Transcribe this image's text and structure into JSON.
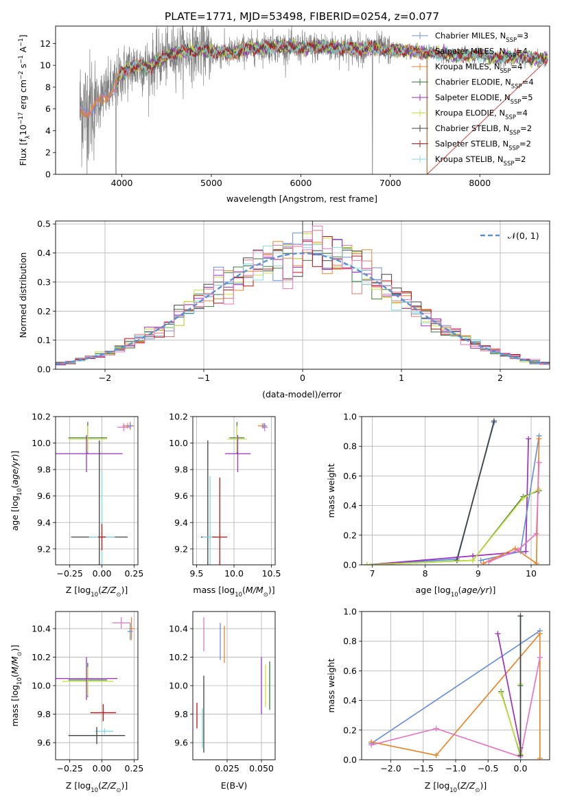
{
  "figure": {
    "title": "PLATE=1771, MJD=53498, FIBERID=0254, z=0.077"
  },
  "chart_data": [
    {
      "id": "spectrum",
      "type": "line",
      "xlabel": "wavelength [Angstrom, rest frame]",
      "ylabel": "Flux [f$_\\lambda$10$^{-17}$ erg cm$^{-2}$ s$^{-1}$ A$^{-1}$]",
      "ylabel_parts": [
        "Flux [f",
        "λ",
        "10",
        "−17",
        " erg cm",
        "−2",
        " s",
        "−1",
        " A",
        "−1",
        "]"
      ],
      "xlim": [
        3260,
        8780
      ],
      "ylim": [
        0,
        13.6
      ],
      "xticks": [
        4000,
        5000,
        6000,
        7000,
        8000
      ],
      "yticks": [
        0,
        2,
        4,
        6,
        8,
        10,
        12
      ],
      "series": [
        {
          "name": "Chabrier MILES, N$_{SSP}$=3",
          "label": "Chabrier MILES, N",
          "n": "3",
          "color": "#6a8fd8"
        },
        {
          "name": "Salpeter MILES, N$_{SSP}$=4",
          "label": "Salpeter MILES, N",
          "n": "4",
          "color": "#e07878"
        },
        {
          "name": "Kroupa MILES, N$_{SSP}$=4",
          "label": "Kroupa MILES, N",
          "n": "4",
          "color": "#e8852a"
        },
        {
          "name": "Chabrier ELODIE, N$_{SSP}$=4",
          "label": "Chabrier ELODIE, N",
          "n": "4",
          "color": "#3d7a3d"
        },
        {
          "name": "Salpeter ELODIE, N$_{SSP}$=5",
          "label": "Salpeter ELODIE, N",
          "n": "5",
          "color": "#9a2fc0"
        },
        {
          "name": "Kroupa ELODIE, N$_{SSP}$=4",
          "label": "Kroupa ELODIE, N",
          "n": "4",
          "color": "#c8e040"
        },
        {
          "name": "Chabrier STELIB, N$_{SSP}$=2",
          "label": "Chabrier STELIB, N",
          "n": "2",
          "color": "#404040"
        },
        {
          "name": "Salpeter STELIB, N$_{SSP}$=2",
          "label": "Salpeter STELIB, N",
          "n": "2",
          "color": "#c01010"
        },
        {
          "name": "Kroupa STELIB, N$_{SSP}$=2",
          "label": "Kroupa STELIB, N",
          "n": "2",
          "color": "#80d8e0"
        }
      ],
      "subscript": "SSP",
      "data_color": "#808080",
      "continuum": [
        [
          3530,
          6
        ],
        [
          3600,
          6
        ],
        [
          3700,
          6.5
        ],
        [
          3800,
          7.3
        ],
        [
          3900,
          7.9
        ],
        [
          4000,
          9.2
        ],
        [
          4100,
          9.8
        ],
        [
          4200,
          10
        ],
        [
          4300,
          9.8
        ],
        [
          4400,
          10.4
        ],
        [
          4500,
          10.8
        ],
        [
          4600,
          11.2
        ],
        [
          4700,
          11.3
        ],
        [
          4800,
          11.3
        ],
        [
          4900,
          11.5
        ],
        [
          5000,
          11.2
        ],
        [
          5200,
          11.1
        ],
        [
          5400,
          11.5
        ],
        [
          5600,
          11.7
        ],
        [
          5800,
          11.7
        ],
        [
          6000,
          11.6
        ],
        [
          6200,
          11.7
        ],
        [
          6400,
          11.6
        ],
        [
          6600,
          11.5
        ],
        [
          6800,
          11.6
        ],
        [
          7000,
          11.4
        ],
        [
          7200,
          11.3
        ],
        [
          7400,
          11.2
        ],
        [
          7600,
          11
        ],
        [
          7800,
          10.9
        ],
        [
          8000,
          11
        ],
        [
          8200,
          10.6
        ],
        [
          8400,
          10.8
        ],
        [
          8600,
          10.6
        ],
        [
          8760,
          10.6
        ]
      ],
      "dips": [
        [
          3934,
          0
        ],
        [
          6800,
          0
        ],
        [
          7410,
          0
        ]
      ]
    },
    {
      "id": "residuals",
      "type": "histogram",
      "xlabel": "(data-model)/error",
      "ylabel": "Normed distribution",
      "xlim": [
        -2.5,
        2.5
      ],
      "ylim": [
        0,
        0.51
      ],
      "xticks": [
        -2,
        -1,
        0,
        1,
        2
      ],
      "xtick_labels": [
        "−2",
        "−1",
        "0",
        "1",
        "2"
      ],
      "yticks": [
        0,
        0.1,
        0.2,
        0.3,
        0.4,
        0.5
      ],
      "ytick_labels": [
        "0.0",
        "0.1",
        "0.2",
        "0.3",
        "0.4",
        "0.5"
      ],
      "legend_label": "N(0,1)",
      "legend_position": "top-right",
      "bin_width": 0.1,
      "bin_start": -2.5,
      "normal_curve": {
        "mean": 0,
        "sigma": 1,
        "color": "#5b8fd0"
      }
    },
    {
      "id": "age-Z",
      "type": "errorbar",
      "xlabel": "Z [log",
      "xlabel_parts": [
        "Z [log",
        "10",
        "(Z/Z",
        "⊙",
        ")]"
      ],
      "ylabel_parts": [
        "age  [log",
        "10",
        "(age/yr)]"
      ],
      "xlim": [
        -0.36,
        0.28
      ],
      "ylim": [
        9.08,
        10.2
      ],
      "xticks": [
        -0.25,
        0,
        0.25
      ],
      "xtick_labels": [
        "−0.25",
        "0.00",
        "0.25"
      ],
      "yticks": [
        9.2,
        9.4,
        9.6,
        9.8,
        10.0,
        10.2
      ],
      "ytick_labels": [
        "9.2",
        "9.4",
        "9.6",
        "9.8",
        "10.0",
        "10.2"
      ],
      "points": [
        {
          "c": "#e07878",
          "x": 0.2,
          "y": 10.13,
          "xe": 0.04,
          "ye": 0.02
        },
        {
          "c": "#e8852a",
          "x": 0.22,
          "y": 10.13,
          "xe": 0.03,
          "ye": 0.03
        },
        {
          "c": "#6a8fd8",
          "x": 0.22,
          "y": 10.13,
          "xe": 0.02,
          "ye": 0.02
        },
        {
          "c": "#e377c2",
          "x": 0.17,
          "y": 10.12,
          "xe": 0.05,
          "ye": 0.03
        },
        {
          "c": "#3d7a3d",
          "x": -0.11,
          "y": 10.04,
          "xe": 0.15,
          "ye": 0.12
        },
        {
          "c": "#c8e040",
          "x": -0.11,
          "y": 10.03,
          "xe": 0.15,
          "ye": 0.1
        },
        {
          "c": "#9a2fc0",
          "x": -0.12,
          "y": 9.92,
          "xe": 0.28,
          "ye": 0.14
        },
        {
          "c": "#404040",
          "x": -0.02,
          "y": 9.29,
          "xe": 0.22,
          "ye": 0.73
        },
        {
          "c": "#80d8e0",
          "x": 0.0,
          "y": 9.29,
          "xe": 0.1,
          "ye": 0.5
        },
        {
          "c": "#c01010",
          "x": 0.0,
          "y": 9.29,
          "xe": 0.03,
          "ye": 0.1
        }
      ]
    },
    {
      "id": "age-mass",
      "type": "errorbar",
      "xlabel_parts": [
        "mass [log",
        "10",
        "(M/M",
        "⊙",
        ")]"
      ],
      "xlim": [
        9.45,
        10.55
      ],
      "ylim": [
        9.08,
        10.2
      ],
      "xticks": [
        9.5,
        10.0,
        10.5
      ],
      "xtick_labels": [
        "9.5",
        "10.0",
        "10.5"
      ],
      "yticks": [
        9.2,
        9.4,
        9.6,
        9.8,
        10.0,
        10.2
      ],
      "ytick_labels": [
        "9.2",
        "9.4",
        "9.6",
        "9.8",
        "10.0",
        "10.2"
      ],
      "points": [
        {
          "c": "#e8852a",
          "x": 10.38,
          "y": 10.13,
          "xe": 0.06,
          "ye": 0.02
        },
        {
          "c": "#e377c2",
          "x": 10.41,
          "y": 10.12,
          "xe": 0.04,
          "ye": 0.03
        },
        {
          "c": "#6a8fd8",
          "x": 10.4,
          "y": 10.13,
          "xe": 0.03,
          "ye": 0.02
        },
        {
          "c": "#3d7a3d",
          "x": 10.04,
          "y": 10.04,
          "xe": 0.1,
          "ye": 0.12
        },
        {
          "c": "#c8e040",
          "x": 10.04,
          "y": 10.03,
          "xe": 0.13,
          "ye": 0.1
        },
        {
          "c": "#9a2fc0",
          "x": 10.05,
          "y": 9.92,
          "xe": 0.17,
          "ye": 0.14
        },
        {
          "c": "#404040",
          "x": 9.65,
          "y": 9.29,
          "xe": 0.09,
          "ye": 0.73
        },
        {
          "c": "#80d8e0",
          "x": 9.68,
          "y": 9.29,
          "xe": 0.1,
          "ye": 0.46
        },
        {
          "c": "#c01010",
          "x": 9.81,
          "y": 9.29,
          "xe": 0.1,
          "ye": 0.45
        }
      ]
    },
    {
      "id": "weight-age",
      "type": "line",
      "xlabel_parts": [
        "age  [log",
        "10",
        "(age/yr)]"
      ],
      "ylabel": "mass weight",
      "xlim": [
        6.8,
        10.35
      ],
      "ylim": [
        0,
        1.0
      ],
      "xticks": [
        7,
        8,
        9,
        10
      ],
      "xtick_labels": [
        "7",
        "8",
        "9",
        "10"
      ],
      "yticks": [
        0,
        0.2,
        0.4,
        0.6,
        0.8,
        1.0
      ],
      "ytick_labels": [
        "0.0",
        "0.2",
        "0.4",
        "0.6",
        "0.8",
        "1.0"
      ],
      "series": [
        {
          "c": "#80d8e0",
          "pts": [
            [
              6.9,
              0.0
            ],
            [
              8.6,
              0.03
            ],
            [
              9.3,
              0.97
            ]
          ]
        },
        {
          "c": "#6a8fd8",
          "pts": [
            [
              6.9,
              0.0
            ],
            [
              8.6,
              0.04
            ],
            [
              9.3,
              0.96
            ]
          ]
        },
        {
          "c": "#404040",
          "pts": [
            [
              8.6,
              0.03
            ],
            [
              9.3,
              0.97
            ]
          ]
        },
        {
          "c": "#9a2fc0",
          "pts": [
            [
              6.9,
              0.0
            ],
            [
              8.9,
              0.06
            ],
            [
              9.9,
              0.09
            ],
            [
              9.95,
              0.85
            ]
          ]
        },
        {
          "c": "#3d7a3d",
          "pts": [
            [
              6.9,
              0.0
            ],
            [
              8.9,
              0.03
            ],
            [
              9.85,
              0.46
            ],
            [
              10.15,
              0.5
            ]
          ]
        },
        {
          "c": "#c8e040",
          "pts": [
            [
              6.9,
              0.0
            ],
            [
              8.9,
              0.03
            ],
            [
              9.85,
              0.45
            ],
            [
              10.15,
              0.51
            ]
          ]
        },
        {
          "c": "#6a8fd8",
          "pts": [
            [
              9.05,
              0.03
            ],
            [
              9.8,
              0.09
            ],
            [
              10.15,
              0.87
            ]
          ]
        },
        {
          "c": "#e8852a",
          "pts": [
            [
              9.1,
              0.01
            ],
            [
              9.7,
              0.11
            ],
            [
              10.1,
              0.01
            ],
            [
              10.15,
              0.85
            ]
          ]
        },
        {
          "c": "#e377c2",
          "pts": [
            [
              9.2,
              0.02
            ],
            [
              9.75,
              0.1
            ],
            [
              10.1,
              0.21
            ],
            [
              10.15,
              0.69
            ]
          ]
        }
      ]
    },
    {
      "id": "mass-Z",
      "type": "errorbar",
      "xlabel_parts": [
        "Z [log",
        "10",
        "(Z/Z",
        "⊙",
        ")]"
      ],
      "ylabel_parts": [
        "mass [log",
        "10",
        "(M/M",
        "⊙",
        ")]"
      ],
      "xlim": [
        -0.36,
        0.28
      ],
      "ylim": [
        9.48,
        10.52
      ],
      "xticks": [
        -0.25,
        0,
        0.25
      ],
      "xtick_labels": [
        "−0.25",
        "0.00",
        "0.25"
      ],
      "yticks": [
        9.6,
        9.8,
        10.0,
        10.2,
        10.4
      ],
      "ytick_labels": [
        "9.6",
        "9.8",
        "10.0",
        "10.2",
        "10.4"
      ],
      "points": [
        {
          "c": "#e377c2",
          "x": 0.15,
          "y": 10.44,
          "xe": 0.07,
          "ye": 0.04
        },
        {
          "c": "#e8852a",
          "x": 0.23,
          "y": 10.4,
          "xe": 0.02,
          "ye": 0.08
        },
        {
          "c": "#6a8fd8",
          "x": 0.22,
          "y": 10.38,
          "xe": 0.02,
          "ye": 0.06
        },
        {
          "c": "#3d7a3d",
          "x": -0.11,
          "y": 10.04,
          "xe": 0.15,
          "ye": 0.12
        },
        {
          "c": "#c8e040",
          "x": -0.11,
          "y": 10.03,
          "xe": 0.2,
          "ye": 0.1
        },
        {
          "c": "#9a2fc0",
          "x": -0.12,
          "y": 10.05,
          "xe": 0.24,
          "ye": 0.15
        },
        {
          "c": "#c01010",
          "x": 0.01,
          "y": 9.81,
          "xe": 0.1,
          "ye": 0.06
        },
        {
          "c": "#80d8e0",
          "x": 0.02,
          "y": 9.68,
          "xe": 0.07,
          "ye": 0.02
        },
        {
          "c": "#404040",
          "x": -0.04,
          "y": 9.65,
          "xe": 0.22,
          "ye": 0.06
        }
      ]
    },
    {
      "id": "mass-EBV",
      "type": "errorbar",
      "xlabel": "E(B-V)",
      "xlim": [
        0.0,
        0.06
      ],
      "ylim": [
        9.48,
        10.52
      ],
      "xticks": [
        0.025,
        0.05
      ],
      "xtick_labels": [
        "0.025",
        "0.050"
      ],
      "yticks": [
        9.6,
        9.8,
        10.0,
        10.2,
        10.4
      ],
      "ytick_labels": [
        "9.6",
        "9.8",
        "10.0",
        "10.2",
        "10.4"
      ],
      "points": [
        {
          "c": "#e377c2",
          "x": 0.008,
          "y": 10.36,
          "xe": 0,
          "ye": 0.12
        },
        {
          "c": "#6a8fd8",
          "x": 0.02,
          "y": 10.31,
          "xe": 0,
          "ye": 0.13
        },
        {
          "c": "#e8852a",
          "x": 0.023,
          "y": 10.29,
          "xe": 0,
          "ye": 0.13
        },
        {
          "c": "#c01010",
          "x": 0.003,
          "y": 9.79,
          "xe": 0,
          "ye": 0.09
        },
        {
          "c": "#404040",
          "x": 0.008,
          "y": 9.8,
          "xe": 0,
          "ye": 0.27
        },
        {
          "c": "#80d8e0",
          "x": 0.007,
          "y": 9.7,
          "xe": 0,
          "ye": 0.14
        },
        {
          "c": "#9a2fc0",
          "x": 0.05,
          "y": 10.0,
          "xe": 0,
          "ye": 0.2
        },
        {
          "c": "#c8e040",
          "x": 0.053,
          "y": 10.0,
          "xe": 0,
          "ye": 0.15
        },
        {
          "c": "#3d7a3d",
          "x": 0.056,
          "y": 10.0,
          "xe": 0,
          "ye": 0.17
        }
      ]
    },
    {
      "id": "weight-Z",
      "type": "line",
      "xlabel_parts": [
        "Z [log",
        "10",
        "(Z/Z",
        "⊙",
        ")]"
      ],
      "ylabel": "mass weight",
      "xlim": [
        -2.45,
        0.45
      ],
      "ylim": [
        0,
        1.0
      ],
      "xticks": [
        -2.0,
        -1.5,
        -1.0,
        -0.5,
        0.0
      ],
      "xtick_labels": [
        "−2.0",
        "−1.5",
        "−1.0",
        "−0.5",
        "0.0"
      ],
      "yticks": [
        0,
        0.2,
        0.4,
        0.6,
        0.8,
        1.0
      ],
      "ytick_labels": [
        "0.0",
        "0.2",
        "0.4",
        "0.6",
        "0.8",
        "1.0"
      ],
      "series": [
        {
          "c": "#6a8fd8",
          "pts": [
            [
              -2.3,
              0.11
            ],
            [
              0.3,
              0.87
            ]
          ]
        },
        {
          "c": "#e8852a",
          "pts": [
            [
              -2.3,
              0.12
            ],
            [
              -1.3,
              0.03
            ],
            [
              0.3,
              0.85
            ],
            [
              0.3,
              0.01
            ]
          ]
        },
        {
          "c": "#e377c2",
          "pts": [
            [
              -2.3,
              0.1
            ],
            [
              -1.3,
              0.21
            ],
            [
              0.0,
              0.02
            ],
            [
              0.3,
              0.69
            ]
          ]
        },
        {
          "c": "#9a2fc0",
          "pts": [
            [
              -0.35,
              0.85
            ],
            [
              0.0,
              0.08
            ]
          ]
        },
        {
          "c": "#3d7a3d",
          "pts": [
            [
              -0.3,
              0.46
            ],
            [
              0.0,
              0.03
            ],
            [
              0.0,
              0.5
            ]
          ]
        },
        {
          "c": "#c8e040",
          "pts": [
            [
              -0.3,
              0.45
            ],
            [
              0.0,
              0.04
            ],
            [
              0.0,
              0.51
            ]
          ]
        },
        {
          "c": "#80d8e0",
          "pts": [
            [
              0.0,
              0.0
            ],
            [
              0.0,
              0.97
            ]
          ]
        },
        {
          "c": "#404040",
          "pts": [
            [
              0.0,
              0.03
            ],
            [
              0.0,
              0.97
            ]
          ]
        }
      ]
    }
  ]
}
